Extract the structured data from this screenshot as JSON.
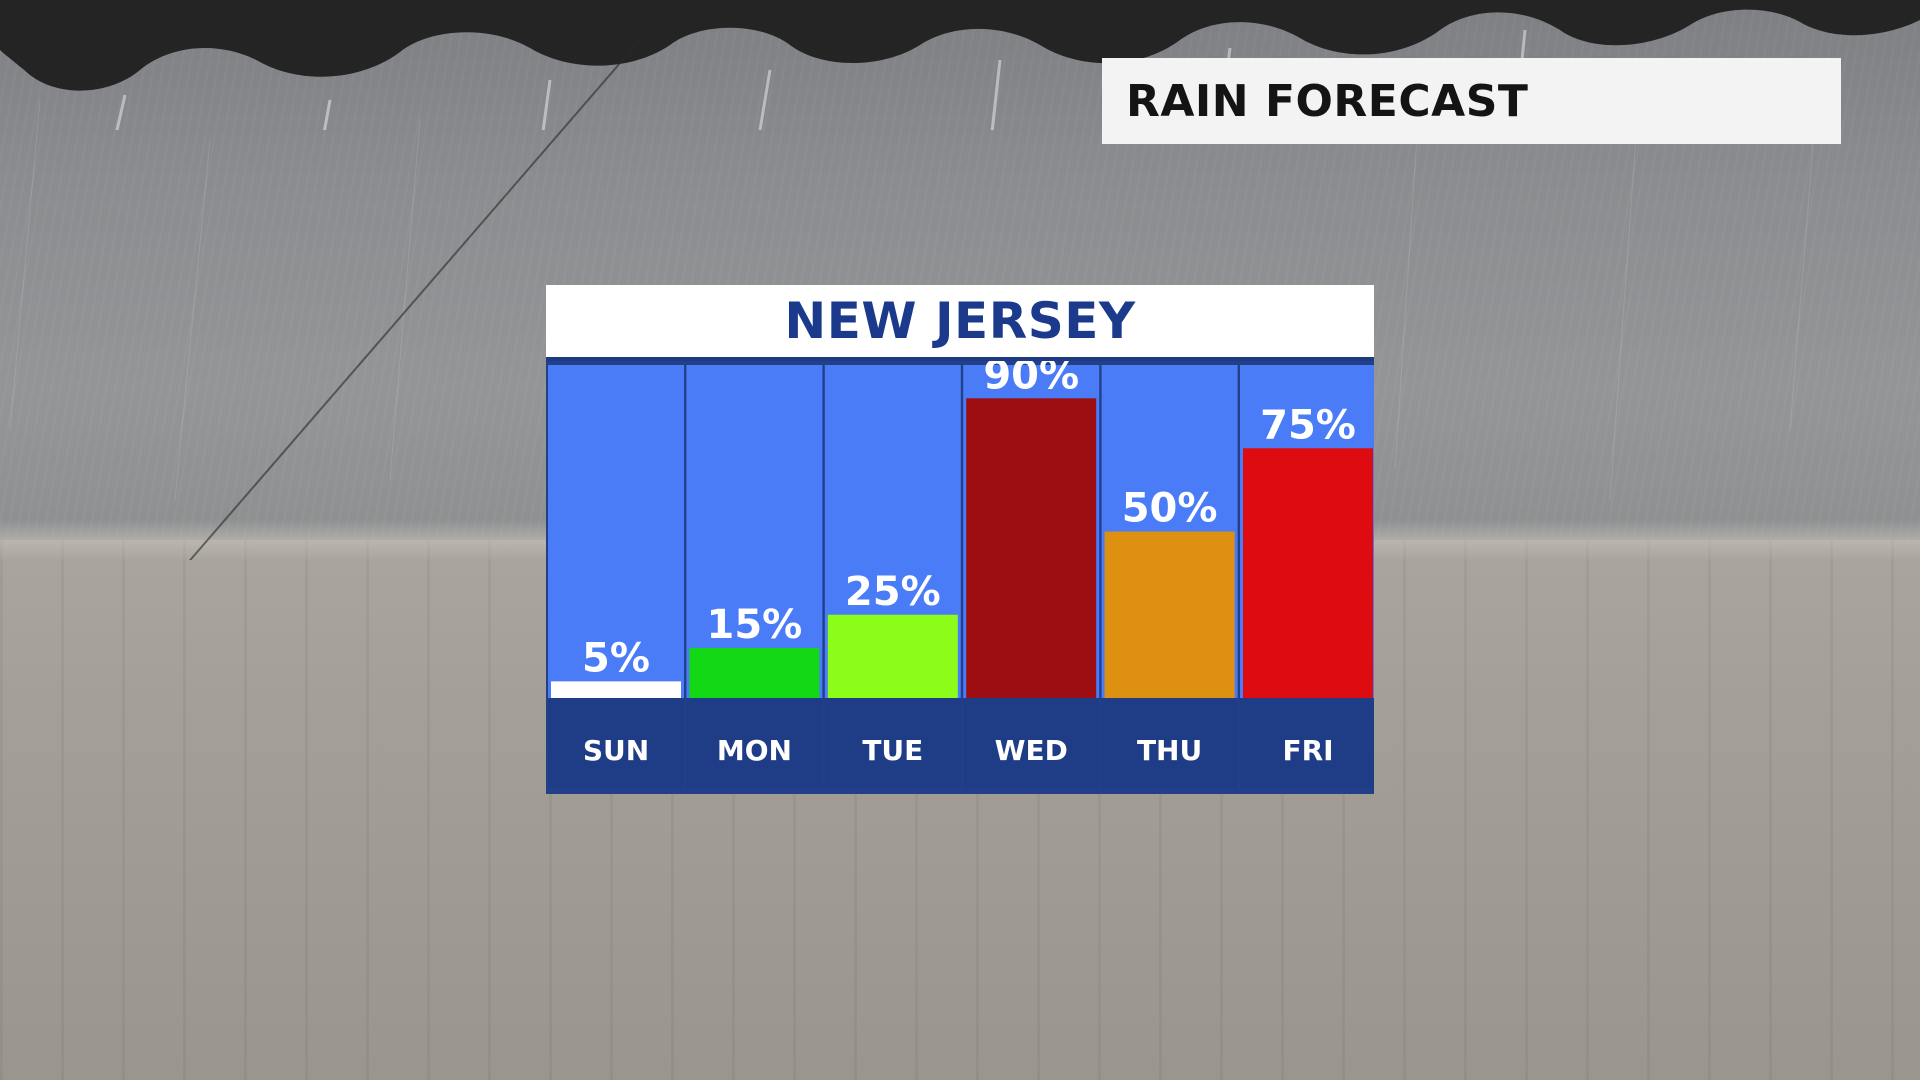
{
  "header": {
    "title": "RAIN FORECAST"
  },
  "chart_data": {
    "type": "bar",
    "title": "NEW JERSEY",
    "categories": [
      "SUN",
      "MON",
      "TUE",
      "WED",
      "THU",
      "FRI"
    ],
    "values": [
      5,
      15,
      25,
      90,
      50,
      75
    ],
    "value_labels": [
      "5%",
      "15%",
      "25%",
      "90%",
      "50%",
      "75%"
    ],
    "bar_colors": [
      "#ffffff",
      "#12d815",
      "#8cfd18",
      "#9c0e12",
      "#de9110",
      "#de0c10"
    ],
    "column_background_color": "#4a7cf7",
    "day_band_color": "#1f3d86",
    "border_color": "#1d3a82",
    "ylim": [
      0,
      100
    ],
    "xlabel": "",
    "ylabel": "",
    "grid": false,
    "legend": "none"
  }
}
